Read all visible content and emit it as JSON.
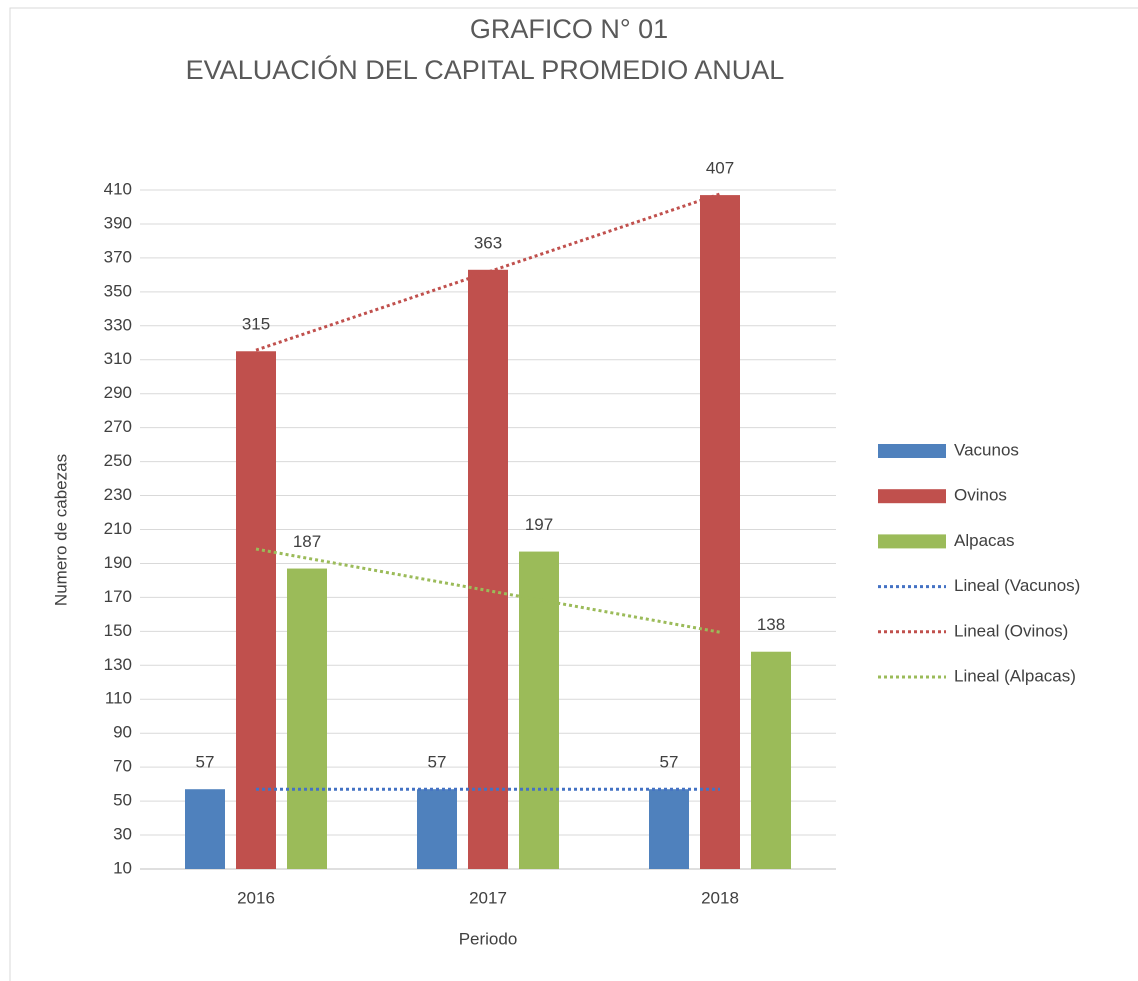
{
  "chart_data": {
    "type": "bar",
    "title": [
      "GRAFICO N° 01",
      "EVALUACIÓN DEL CAPITAL PROMEDIO ANUAL"
    ],
    "x_label": "Periodo",
    "y_label": "Numero de cabezas",
    "categories": [
      "2016",
      "2017",
      "2018"
    ],
    "series": [
      {
        "name": "Vacunos",
        "color": "#4f81bd",
        "values": [
          57,
          57,
          57
        ],
        "trendline": {
          "name": "Lineal (Vacunos)",
          "type": "linear",
          "color": "#4472c4"
        }
      },
      {
        "name": "Ovinos",
        "color": "#c0504d",
        "values": [
          315,
          363,
          407
        ],
        "trendline": {
          "name": "Lineal (Ovinos)",
          "type": "linear",
          "color": "#c0504d"
        }
      },
      {
        "name": "Alpacas",
        "color": "#9bbb59",
        "values": [
          187,
          197,
          138
        ],
        "trendline": {
          "name": "Lineal (Alpacas)",
          "type": "linear",
          "color": "#9bbb59"
        }
      }
    ],
    "ylim": [
      10,
      410
    ],
    "yticks": [
      10,
      30,
      50,
      70,
      90,
      110,
      130,
      150,
      170,
      190,
      210,
      230,
      250,
      270,
      290,
      310,
      330,
      350,
      370,
      390,
      410
    ],
    "grid": true,
    "legend": "right"
  }
}
